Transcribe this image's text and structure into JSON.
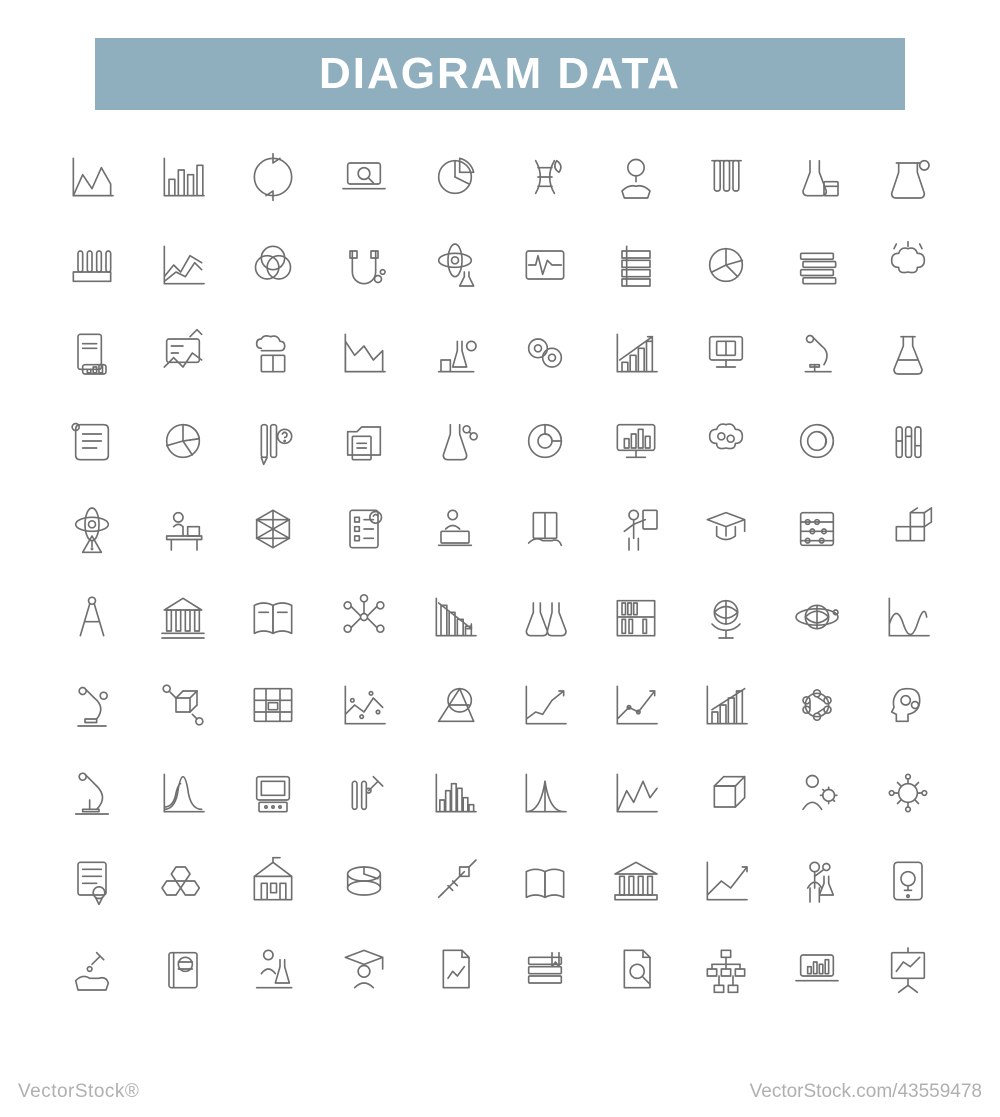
{
  "header": {
    "title": "DIAGRAM DATA",
    "bg_color": "#8FAFBF",
    "text_color": "#FFFFFF",
    "font_size": 44,
    "letter_spacing": 2
  },
  "style": {
    "page_bg": "#FFFFFF",
    "icon_stroke": "#6F6F6F",
    "icon_stroke_width": 1.4,
    "footer_color": "#B0B0B0"
  },
  "grid": {
    "cols": 10,
    "rows": 10,
    "cell_size": 72,
    "icons": [
      "area-chart-icon",
      "bar-chart-icon",
      "refresh-cycle-icon",
      "laptop-search-icon",
      "pie-chart-icon",
      "dna-leaf-icon",
      "idea-hand-icon",
      "test-tubes-icon",
      "flask-book-icon",
      "lab-beaker-icon",
      "tube-rack-icon",
      "line-chart-icon",
      "venn-diagram-icon",
      "magnet-icon",
      "atom-flask-icon",
      "ecg-monitor-icon",
      "stacked-books-icon",
      "pie-segments-icon",
      "book-stack-icon",
      "brain-storm-icon",
      "report-chart-icon",
      "formula-board-icon",
      "cloud-book-icon",
      "area-down-icon",
      "lab-equipment-icon",
      "cells-icon",
      "ascending-bars-icon",
      "ebook-monitor-icon",
      "microscope-icon",
      "erlenmeyer-icon",
      "scroll-report-icon",
      "pie-detailed-icon",
      "pen-question-icon",
      "folder-docs-icon",
      "molecule-flask-icon",
      "donut-chart-icon",
      "monitor-bars-icon",
      "brain-gears-icon",
      "ring-chart-icon",
      "vials-icon",
      "atom-warning-icon",
      "desk-study-icon",
      "polyhedron-icon",
      "checklist-icon",
      "student-laptop-icon",
      "book-hand-icon",
      "teacher-icon",
      "graduate-icon",
      "abacus-chart-icon",
      "cubes-icon",
      "compass-icon",
      "institution-icon",
      "open-book-icon",
      "network-nodes-icon",
      "declining-bars-icon",
      "flasks-pair-icon",
      "library-shelf-icon",
      "globe-stand-icon",
      "earth-orbit-icon",
      "wave-chart-icon",
      "microscope2-icon",
      "cube-network-icon",
      "blueprint-icon",
      "scatter-line-icon",
      "geometry-icon",
      "growth-chart-icon",
      "trend-up-icon",
      "step-bars-icon",
      "molecule-ring-icon",
      "head-gears-icon",
      "microscope3-icon",
      "bell-curve-icon",
      "computer-retro-icon",
      "pipette-tubes-icon",
      "histogram-icon",
      "gauss-curve-icon",
      "mountain-chart-icon",
      "cube-3d-icon",
      "person-gear-icon",
      "virus-icon",
      "certificate-icon",
      "hexagon-mesh-icon",
      "school-building-icon",
      "cylinder-pie-icon",
      "syringe-icon",
      "open-book2-icon",
      "bank-columns-icon",
      "trend-arrow-icon",
      "scientist-icon",
      "tablet-idea-icon",
      "hand-dropper-icon",
      "textbook-icon",
      "lab-person-icon",
      "graduate2-icon",
      "document-chart-icon",
      "books-bookmark-icon",
      "paper-search-icon",
      "org-tree-icon",
      "laptop-chart-icon",
      "presentation-icon"
    ]
  },
  "footer": {
    "left": "VectorStock®",
    "right": "VectorStock.com/43559478"
  }
}
